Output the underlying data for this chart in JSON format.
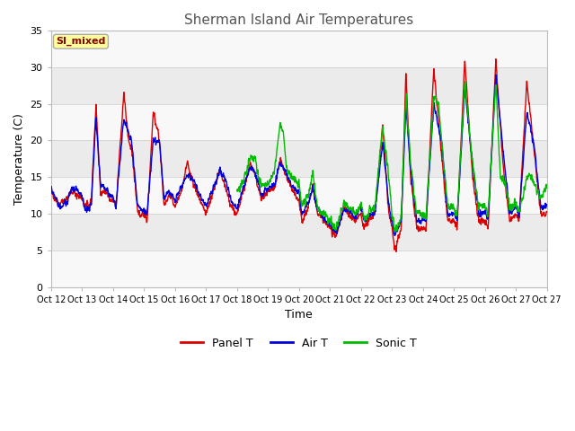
{
  "title": "Sherman Island Air Temperatures",
  "xlabel": "Time",
  "ylabel": "Temperature (C)",
  "ylim": [
    0,
    35
  ],
  "yticks": [
    0,
    5,
    10,
    15,
    20,
    25,
    30,
    35
  ],
  "xtick_labels": [
    "Oct 12",
    "Oct 13",
    "Oct 14",
    "Oct 15",
    "Oct 16",
    "Oct 17",
    "Oct 18",
    "Oct 19",
    "Oct 20",
    "Oct 21",
    "Oct 22",
    "Oct 23",
    "Oct 24",
    "Oct 25",
    "Oct 26",
    "Oct 27"
  ],
  "panel_t_color": "#dd0000",
  "air_t_color": "#0000dd",
  "sonic_t_color": "#00bb00",
  "label_box_text": "SI_mixed",
  "label_box_facecolor": "#ffff99",
  "label_box_edgecolor": "#aaaaaa",
  "label_text_color": "#880000",
  "band_light": "#ebebeb",
  "band_white": "#f8f8f8",
  "background_color": "#ffffff",
  "title_fontsize": 11,
  "axis_fontsize": 9,
  "tick_fontsize": 8,
  "legend_fontsize": 9,
  "line_width": 1.0,
  "num_days": 16,
  "points_per_day": 144,
  "figwidth": 6.4,
  "figheight": 4.8,
  "dpi": 100
}
